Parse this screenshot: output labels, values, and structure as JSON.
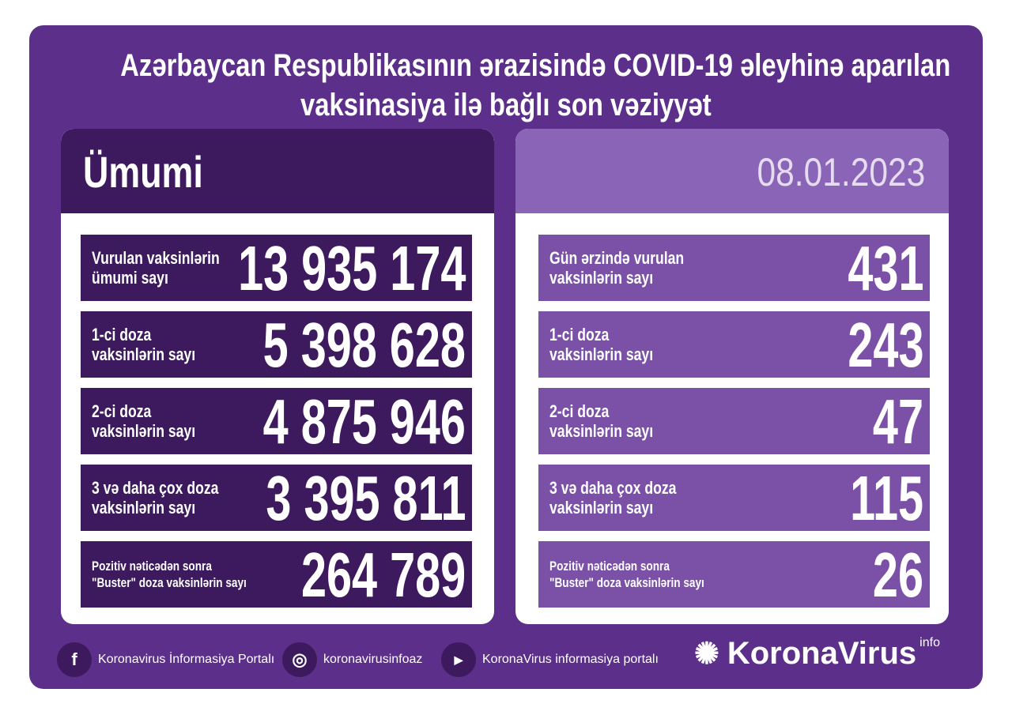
{
  "title": {
    "line1": "Azərbaycan Respublikasının ərazisində COVID-19 əleyhinə aparılan",
    "line2": "vaksinasiya ilə bağlı son vəziyyət"
  },
  "left": {
    "header": "Ümumi",
    "rows": [
      {
        "label1": "Vurulan vaksinlərin",
        "label2": "ümumi sayı",
        "value": "13 935 174"
      },
      {
        "label1": "1-ci doza",
        "label2": "vaksinlərin sayı",
        "value": "5 398 628"
      },
      {
        "label1": "2-ci doza",
        "label2": "vaksinlərin sayı",
        "value": "4 875 946"
      },
      {
        "label1": "3 və daha çox doza",
        "label2": "vaksinlərin sayı",
        "value": "3 395 811"
      },
      {
        "label1": "Pozitiv nəticədən sonra",
        "label2": "\"Buster\" doza vaksinlərin sayı",
        "value": "264 789"
      }
    ]
  },
  "right": {
    "header": "08.01.2023",
    "rows": [
      {
        "label1": "Gün ərzində vurulan",
        "label2": "vaksinlərin sayı",
        "value": "431"
      },
      {
        "label1": "1-ci doza",
        "label2": "vaksinlərin sayı",
        "value": "243"
      },
      {
        "label1": "2-ci doza",
        "label2": "vaksinlərin sayı",
        "value": "47"
      },
      {
        "label1": "3 və daha çox doza",
        "label2": "vaksinlərin sayı",
        "value": "115"
      },
      {
        "label1": "Pozitiv nəticədən sonra",
        "label2": "\"Buster\" doza vaksinlərin sayı",
        "value": "26"
      }
    ]
  },
  "footer": {
    "facebook": "Koronavirus İnformasiya Portalı",
    "instagram": "koronavirusinfoaz",
    "youtube": "KoronaVirus informasiya portalı",
    "logo": "KoronaVirus",
    "logo_sup": "info"
  },
  "colors": {
    "background": "#5b2f8a",
    "dark_box": "#3d1a5e",
    "light_box": "#7b51a8"
  }
}
